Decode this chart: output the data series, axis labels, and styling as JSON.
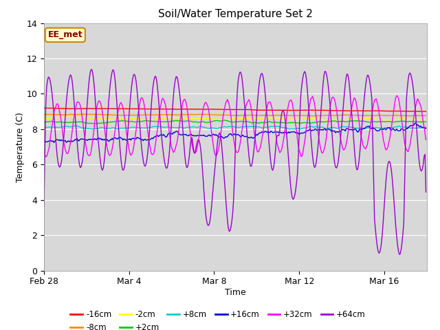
{
  "title": "Soil/Water Temperature Set 2",
  "xlabel": "Time",
  "ylabel": "Temperature (C)",
  "ylim": [
    0,
    14
  ],
  "yticks": [
    0,
    2,
    4,
    6,
    8,
    10,
    12,
    14
  ],
  "plot_bg_color": "#d8d8d8",
  "annotation_text": "EE_met",
  "annotation_bg": "#ffffcc",
  "annotation_border": "#cc8800",
  "legend_entries": [
    "-16cm",
    "-8cm",
    "-2cm",
    "+2cm",
    "+8cm",
    "+16cm",
    "+32cm",
    "+64cm"
  ],
  "line_colors": [
    "#ff0000",
    "#ff8800",
    "#ffff00",
    "#00cc00",
    "#00cccc",
    "#0000cc",
    "#ff00ff",
    "#9900cc"
  ],
  "x_tick_labels": [
    "Feb 28",
    "Mar 4",
    "Mar 8",
    "Mar 12",
    "Mar 16"
  ],
  "x_tick_positions": [
    0,
    4,
    8,
    12,
    16
  ]
}
